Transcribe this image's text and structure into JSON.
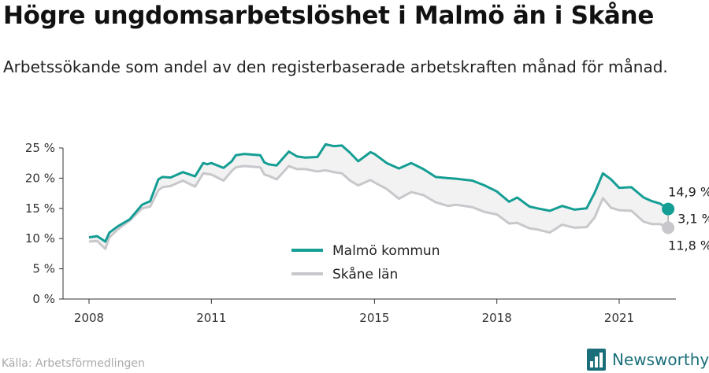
{
  "title": "Högre ungdomsarbetslöshet i Malmö än i Skåne",
  "subtitle": "Arbetssökande som andel av den registerbaserade arbetskraften månad för månad.",
  "source": "Källa: Arbetsförmedlingen",
  "brand": "Newsworthy",
  "colors": {
    "malmo": "#159e94",
    "skane": "#c8c8cc",
    "band": "#f2f2f2",
    "axis": "#333333",
    "brand": "#1a6f7a"
  },
  "icons": {
    "brand_logo": "bar-chart-icon"
  },
  "chart_data": {
    "type": "line",
    "title": "Högre ungdomsarbetslöshet i Malmö än i Skåne",
    "y_tick_labels": [
      "0 %",
      "5 %",
      "10 %",
      "15 %",
      "20 %",
      "25 %"
    ],
    "y_ticks": [
      0,
      5,
      10,
      15,
      20,
      25
    ],
    "ylim": [
      0,
      27
    ],
    "xlim": [
      2007.5,
      2022.6
    ],
    "x_tick_labels": [
      "2008",
      "2011",
      "2015",
      "2018",
      "2021"
    ],
    "x_ticks": [
      2008,
      2011,
      2015,
      2018,
      2021
    ],
    "legend_placement": "bottom-center",
    "grid": false,
    "series": [
      {
        "name": "Malmö kommun",
        "x": [
          2008.0,
          2008.2,
          2008.4,
          2008.5,
          2008.7,
          2009.0,
          2009.3,
          2009.5,
          2009.7,
          2009.8,
          2010.0,
          2010.3,
          2010.6,
          2010.8,
          2010.9,
          2011.0,
          2011.3,
          2011.5,
          2011.6,
          2011.8,
          2012.2,
          2012.3,
          2012.4,
          2012.6,
          2012.9,
          2013.1,
          2013.3,
          2013.6,
          2013.8,
          2014.0,
          2014.2,
          2014.4,
          2014.6,
          2014.9,
          2015.0,
          2015.3,
          2015.6,
          2015.9,
          2016.2,
          2016.5,
          2016.8,
          2017.0,
          2017.4,
          2017.7,
          2018.0,
          2018.3,
          2018.5,
          2018.8,
          2019.0,
          2019.3,
          2019.6,
          2019.9,
          2020.2,
          2020.4,
          2020.6,
          2020.8,
          2021.0,
          2021.3,
          2021.6,
          2021.8,
          2022.0,
          2022.2
        ],
        "values": [
          10.2,
          10.4,
          9.5,
          11.0,
          12.0,
          13.2,
          15.6,
          16.2,
          19.8,
          20.2,
          20.1,
          21.0,
          20.3,
          22.5,
          22.3,
          22.5,
          21.7,
          22.8,
          23.8,
          24.0,
          23.8,
          22.6,
          22.3,
          22.1,
          24.4,
          23.6,
          23.4,
          23.5,
          25.6,
          25.3,
          25.4,
          24.2,
          22.8,
          24.3,
          24.0,
          22.5,
          21.6,
          22.5,
          21.5,
          20.2,
          20.0,
          19.9,
          19.6,
          18.8,
          17.8,
          16.1,
          16.8,
          15.3,
          15.0,
          14.6,
          15.4,
          14.8,
          15.0,
          17.6,
          20.8,
          19.8,
          18.4,
          18.5,
          16.8,
          16.2,
          15.8,
          14.9
        ]
      },
      {
        "name": "Skåne län",
        "x": [
          2008.0,
          2008.2,
          2008.4,
          2008.5,
          2008.7,
          2009.0,
          2009.3,
          2009.5,
          2009.7,
          2009.8,
          2010.0,
          2010.3,
          2010.6,
          2010.8,
          2010.9,
          2011.0,
          2011.3,
          2011.5,
          2011.6,
          2011.8,
          2012.2,
          2012.3,
          2012.4,
          2012.6,
          2012.9,
          2013.1,
          2013.3,
          2013.6,
          2013.8,
          2014.0,
          2014.2,
          2014.4,
          2014.6,
          2014.9,
          2015.0,
          2015.3,
          2015.6,
          2015.9,
          2016.2,
          2016.5,
          2016.8,
          2017.0,
          2017.4,
          2017.7,
          2018.0,
          2018.3,
          2018.5,
          2018.8,
          2019.0,
          2019.3,
          2019.6,
          2019.9,
          2020.2,
          2020.4,
          2020.6,
          2020.8,
          2021.0,
          2021.3,
          2021.6,
          2021.8,
          2022.0,
          2022.2
        ],
        "values": [
          9.5,
          9.6,
          8.3,
          10.2,
          11.5,
          13.0,
          15.0,
          15.3,
          18.0,
          18.5,
          18.7,
          19.6,
          18.6,
          20.8,
          20.7,
          20.6,
          19.6,
          21.2,
          21.8,
          22.0,
          21.8,
          20.6,
          20.4,
          19.8,
          22.0,
          21.5,
          21.5,
          21.1,
          21.3,
          21.0,
          20.8,
          19.6,
          18.8,
          19.7,
          19.3,
          18.2,
          16.6,
          17.7,
          17.2,
          16.0,
          15.4,
          15.6,
          15.2,
          14.4,
          14.0,
          12.5,
          12.6,
          11.7,
          11.5,
          11.0,
          12.3,
          11.8,
          11.9,
          13.5,
          16.7,
          15.1,
          14.7,
          14.6,
          12.8,
          12.4,
          12.4,
          11.8
        ]
      }
    ],
    "annotations": {
      "malmo_last": "14,9 %",
      "skane_last": "11,8 %",
      "difference": "3,1 %"
    }
  }
}
